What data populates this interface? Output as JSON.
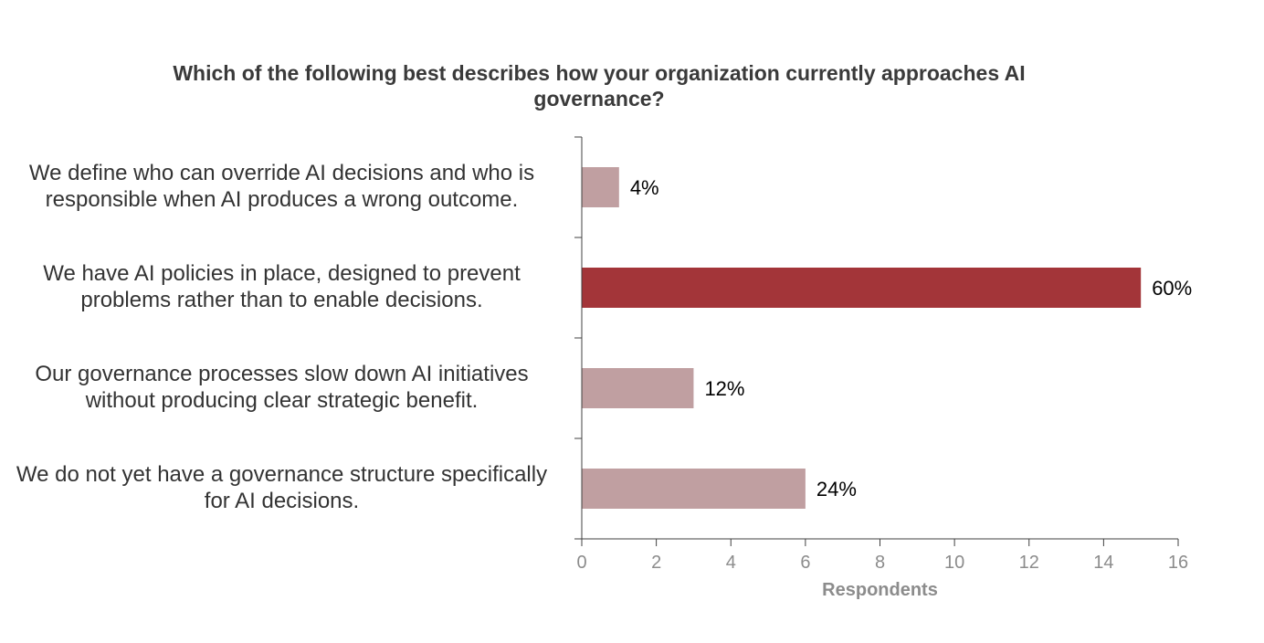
{
  "chart_data": {
    "type": "bar",
    "orientation": "horizontal",
    "title": "Which of the following best describes how your organization currently approaches AI governance?",
    "xlabel": "Respondents",
    "ylabel": "",
    "xlim": [
      0,
      16
    ],
    "xticks": [
      "0",
      "2",
      "4",
      "6",
      "8",
      "10",
      "12",
      "14",
      "16"
    ],
    "grid": false,
    "categories": [
      "We define who can override AI decisions and who is responsible when AI produces a wrong outcome.",
      "We have AI policies in place, designed to prevent problems rather than to enable decisions.",
      "Our governance processes slow down AI initiatives without producing clear strategic benefit.",
      "We do not yet have a governance structure specifically for AI decisions."
    ],
    "category_lines": [
      [
        "We define who can override AI decisions and who is",
        "responsible when AI produces a wrong outcome."
      ],
      [
        "We have AI policies in place, designed to prevent",
        "problems rather than to enable decisions."
      ],
      [
        "Our governance processes slow down AI initiatives",
        "without producing clear strategic benefit."
      ],
      [
        "We do not yet have a governance structure specifically",
        "for AI decisions."
      ]
    ],
    "values": [
      1,
      15,
      3,
      6
    ],
    "data_labels": [
      "4%",
      "60%",
      "12%",
      "24%"
    ],
    "colors": [
      "#c09fa1",
      "#a33539",
      "#c09fa1",
      "#c09fa1"
    ],
    "axis_color": "#404040"
  }
}
